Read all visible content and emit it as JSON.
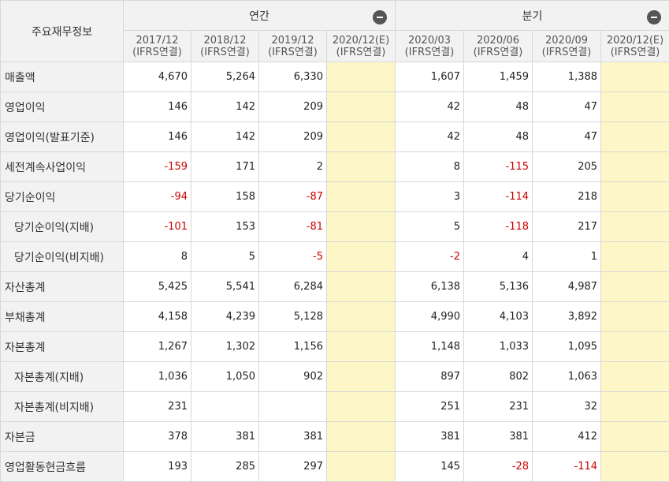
{
  "header": {
    "title": "주요재무정보",
    "groups": [
      {
        "label": "연간",
        "collapse_icon": "minus-circle-icon"
      },
      {
        "label": "분기",
        "collapse_icon": "minus-circle-icon"
      }
    ],
    "periods": [
      {
        "date": "2017/12",
        "basis": "(IFRS연결)"
      },
      {
        "date": "2018/12",
        "basis": "(IFRS연결)"
      },
      {
        "date": "2019/12",
        "basis": "(IFRS연결)"
      },
      {
        "date": "2020/12(E)",
        "basis": "(IFRS연결)"
      },
      {
        "date": "2020/03",
        "basis": "(IFRS연결)"
      },
      {
        "date": "2020/06",
        "basis": "(IFRS연결)"
      },
      {
        "date": "2020/09",
        "basis": "(IFRS연결)"
      },
      {
        "date": "2020/12(E)",
        "basis": "(IFRS연결)"
      }
    ]
  },
  "rows": [
    {
      "label": "매출액",
      "values": [
        "4,670",
        "5,264",
        "6,330",
        "",
        "1,607",
        "1,459",
        "1,388",
        ""
      ]
    },
    {
      "label": "영업이익",
      "values": [
        "146",
        "142",
        "209",
        "",
        "42",
        "48",
        "47",
        ""
      ]
    },
    {
      "label": "영업이익(발표기준)",
      "values": [
        "146",
        "142",
        "209",
        "",
        "42",
        "48",
        "47",
        ""
      ]
    },
    {
      "label": "세전계속사업이익",
      "values": [
        "-159",
        "171",
        "2",
        "",
        "8",
        "-115",
        "205",
        ""
      ]
    },
    {
      "label": "당기순이익",
      "values": [
        "-94",
        "158",
        "-87",
        "",
        "3",
        "-114",
        "218",
        ""
      ]
    },
    {
      "label": "당기순이익(지배)",
      "values": [
        "-101",
        "153",
        "-81",
        "",
        "5",
        "-118",
        "217",
        ""
      ]
    },
    {
      "label": "당기순이익(비지배)",
      "values": [
        "8",
        "5",
        "-5",
        "",
        "-2",
        "4",
        "1",
        ""
      ]
    },
    {
      "label": "자산총계",
      "values": [
        "5,425",
        "5,541",
        "6,284",
        "",
        "6,138",
        "5,136",
        "4,987",
        ""
      ]
    },
    {
      "label": "부채총계",
      "values": [
        "4,158",
        "4,239",
        "5,128",
        "",
        "4,990",
        "4,103",
        "3,892",
        ""
      ]
    },
    {
      "label": "자본총계",
      "values": [
        "1,267",
        "1,302",
        "1,156",
        "",
        "1,148",
        "1,033",
        "1,095",
        ""
      ]
    },
    {
      "label": "자본총계(지배)",
      "values": [
        "1,036",
        "1,050",
        "902",
        "",
        "897",
        "802",
        "1,063",
        ""
      ]
    },
    {
      "label": "자본총계(비지배)",
      "values": [
        "231",
        "",
        "",
        "",
        "251",
        "231",
        "32",
        ""
      ]
    },
    {
      "label": "자본금",
      "values": [
        "378",
        "381",
        "381",
        "",
        "381",
        "381",
        "412",
        ""
      ]
    },
    {
      "label": "영업활동현금흐름",
      "values": [
        "193",
        "285",
        "297",
        "",
        "145",
        "-28",
        "-114",
        ""
      ]
    }
  ],
  "sub_rows": [
    5,
    6,
    10,
    11
  ],
  "estimate_columns": [
    3,
    7
  ],
  "colors": {
    "negative": "#cc0000",
    "estimate_bg": "#fdf6c7",
    "header_bg": "#f2f2f2"
  }
}
